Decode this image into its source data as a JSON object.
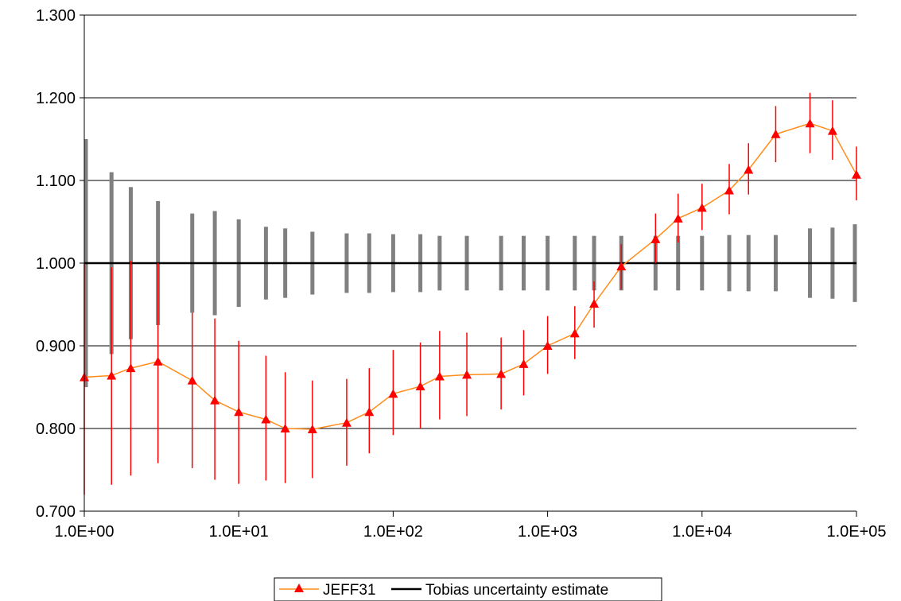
{
  "chart_data": {
    "type": "line",
    "x_scale": "log",
    "xlim": [
      1,
      100000
    ],
    "ylim": [
      0.7,
      1.3
    ],
    "x_ticks": [
      1,
      10,
      100,
      1000,
      10000,
      100000
    ],
    "x_tick_labels": [
      "1.0E+00",
      "1.0E+01",
      "1.0E+02",
      "1.0E+03",
      "1.0E+04",
      "1.0E+05"
    ],
    "y_ticks": [
      0.7,
      0.8,
      0.9,
      1.0,
      1.1,
      1.2,
      1.3
    ],
    "y_tick_labels": [
      "0.700",
      "0.800",
      "0.900",
      "1.000",
      "1.100",
      "1.200",
      "1.300"
    ],
    "grid": "horizontal",
    "legend_position": "bottom-center",
    "colors": {
      "jeff31_line": "#ff8c1a",
      "jeff31_marker": "#ff0000",
      "jeff31_error": "#ff0000",
      "tobias_line": "#000000",
      "tobias_band": "#808080",
      "grid": "#000000"
    },
    "series": [
      {
        "name": "JEFF31",
        "marker": "triangle",
        "x": [
          1,
          1.5,
          2,
          3,
          5,
          7,
          10,
          15,
          20,
          30,
          50,
          70,
          100,
          150,
          200,
          300,
          500,
          700,
          1000,
          1500,
          2000,
          3000,
          5000,
          7000,
          10000,
          15000,
          20000,
          30000,
          50000,
          70000,
          100000
        ],
        "y": [
          0.862,
          0.864,
          0.873,
          0.881,
          0.858,
          0.834,
          0.82,
          0.811,
          0.8,
          0.799,
          0.807,
          0.82,
          0.842,
          0.851,
          0.863,
          0.865,
          0.866,
          0.878,
          0.9,
          0.915,
          0.951,
          0.996,
          1.029,
          1.054,
          1.067,
          1.088,
          1.113,
          1.156,
          1.169,
          1.16,
          1.107
        ],
        "y_low": [
          0.72,
          0.732,
          0.743,
          0.758,
          0.752,
          0.738,
          0.733,
          0.737,
          0.734,
          0.74,
          0.755,
          0.77,
          0.792,
          0.8,
          0.811,
          0.815,
          0.823,
          0.84,
          0.866,
          0.884,
          0.922,
          0.968,
          1.0,
          1.025,
          1.04,
          1.059,
          1.083,
          1.122,
          1.133,
          1.125,
          1.076
        ],
        "y_high": [
          1.0,
          0.995,
          1.003,
          1.0,
          0.94,
          0.933,
          0.906,
          0.888,
          0.868,
          0.858,
          0.86,
          0.873,
          0.895,
          0.904,
          0.918,
          0.916,
          0.91,
          0.919,
          0.936,
          0.948,
          0.978,
          1.023,
          1.06,
          1.084,
          1.096,
          1.12,
          1.145,
          1.19,
          1.206,
          1.197,
          1.141
        ]
      },
      {
        "name": "Tobias uncertainty estimate",
        "x": [
          1,
          100000
        ],
        "y": [
          1.0,
          1.0
        ],
        "band_x": [
          1,
          1.5,
          2,
          3,
          5,
          7,
          10,
          15,
          20,
          30,
          50,
          70,
          100,
          150,
          200,
          300,
          500,
          700,
          1000,
          1500,
          2000,
          3000,
          5000,
          7000,
          10000,
          15000,
          20000,
          30000,
          50000,
          70000,
          100000
        ],
        "band_low": [
          0.85,
          0.89,
          0.908,
          0.925,
          0.94,
          0.937,
          0.947,
          0.956,
          0.958,
          0.962,
          0.964,
          0.964,
          0.965,
          0.965,
          0.967,
          0.967,
          0.967,
          0.967,
          0.967,
          0.967,
          0.967,
          0.967,
          0.967,
          0.967,
          0.967,
          0.966,
          0.966,
          0.966,
          0.958,
          0.957,
          0.953
        ],
        "band_high": [
          1.15,
          1.11,
          1.092,
          1.075,
          1.06,
          1.063,
          1.053,
          1.044,
          1.042,
          1.038,
          1.036,
          1.036,
          1.035,
          1.035,
          1.033,
          1.033,
          1.033,
          1.033,
          1.033,
          1.033,
          1.033,
          1.033,
          1.033,
          1.033,
          1.033,
          1.034,
          1.034,
          1.034,
          1.042,
          1.043,
          1.047
        ]
      }
    ]
  }
}
